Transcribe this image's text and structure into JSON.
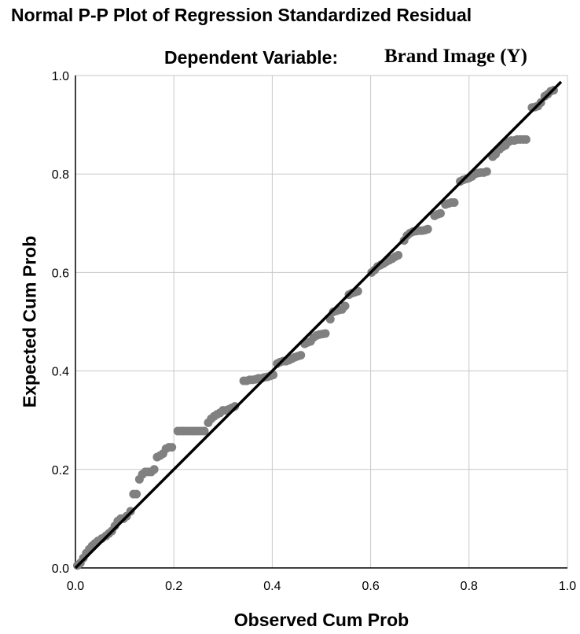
{
  "chart_data": {
    "type": "scatter",
    "title": "Normal P-P Plot of Regression Standardized Residual",
    "subtitle_label": "Dependent Variable:",
    "subtitle_value": "Brand Image (Y)",
    "xlabel": "Observed Cum Prob",
    "ylabel": "Expected Cum Prob",
    "xlim": [
      0,
      1
    ],
    "ylim": [
      0,
      1
    ],
    "xticks": [
      "0.0",
      "0.2",
      "0.4",
      "0.6",
      "0.8",
      "1.0"
    ],
    "yticks": [
      "0.0",
      "0.2",
      "0.4",
      "0.6",
      "0.8",
      "1.0"
    ],
    "grid": true,
    "point_color": "#808080",
    "line_color": "#000000",
    "reference_line": [
      [
        0,
        0
      ],
      [
        1,
        1
      ]
    ],
    "points": [
      [
        0.004,
        0.005
      ],
      [
        0.01,
        0.01
      ],
      [
        0.016,
        0.02
      ],
      [
        0.022,
        0.03
      ],
      [
        0.028,
        0.038
      ],
      [
        0.034,
        0.045
      ],
      [
        0.04,
        0.05
      ],
      [
        0.046,
        0.055
      ],
      [
        0.054,
        0.06
      ],
      [
        0.062,
        0.065
      ],
      [
        0.068,
        0.07
      ],
      [
        0.074,
        0.075
      ],
      [
        0.08,
        0.085
      ],
      [
        0.086,
        0.095
      ],
      [
        0.092,
        0.1
      ],
      [
        0.098,
        0.1
      ],
      [
        0.104,
        0.105
      ],
      [
        0.112,
        0.115
      ],
      [
        0.118,
        0.15
      ],
      [
        0.124,
        0.15
      ],
      [
        0.13,
        0.18
      ],
      [
        0.136,
        0.19
      ],
      [
        0.142,
        0.195
      ],
      [
        0.148,
        0.195
      ],
      [
        0.154,
        0.195
      ],
      [
        0.16,
        0.2
      ],
      [
        0.166,
        0.225
      ],
      [
        0.172,
        0.228
      ],
      [
        0.178,
        0.232
      ],
      [
        0.184,
        0.242
      ],
      [
        0.19,
        0.245
      ],
      [
        0.196,
        0.245
      ],
      [
        0.208,
        0.278
      ],
      [
        0.214,
        0.278
      ],
      [
        0.22,
        0.278
      ],
      [
        0.226,
        0.278
      ],
      [
        0.232,
        0.278
      ],
      [
        0.238,
        0.278
      ],
      [
        0.244,
        0.278
      ],
      [
        0.25,
        0.278
      ],
      [
        0.256,
        0.278
      ],
      [
        0.262,
        0.278
      ],
      [
        0.27,
        0.295
      ],
      [
        0.276,
        0.303
      ],
      [
        0.282,
        0.308
      ],
      [
        0.288,
        0.312
      ],
      [
        0.294,
        0.315
      ],
      [
        0.3,
        0.32
      ],
      [
        0.306,
        0.32
      ],
      [
        0.312,
        0.322
      ],
      [
        0.318,
        0.325
      ],
      [
        0.324,
        0.328
      ],
      [
        0.342,
        0.38
      ],
      [
        0.348,
        0.38
      ],
      [
        0.354,
        0.382
      ],
      [
        0.36,
        0.382
      ],
      [
        0.366,
        0.383
      ],
      [
        0.372,
        0.385
      ],
      [
        0.378,
        0.385
      ],
      [
        0.384,
        0.387
      ],
      [
        0.39,
        0.388
      ],
      [
        0.396,
        0.39
      ],
      [
        0.402,
        0.392
      ],
      [
        0.41,
        0.415
      ],
      [
        0.416,
        0.418
      ],
      [
        0.422,
        0.42
      ],
      [
        0.428,
        0.42
      ],
      [
        0.434,
        0.422
      ],
      [
        0.44,
        0.425
      ],
      [
        0.446,
        0.428
      ],
      [
        0.452,
        0.43
      ],
      [
        0.458,
        0.432
      ],
      [
        0.466,
        0.455
      ],
      [
        0.472,
        0.458
      ],
      [
        0.478,
        0.46
      ],
      [
        0.484,
        0.468
      ],
      [
        0.49,
        0.472
      ],
      [
        0.496,
        0.474
      ],
      [
        0.502,
        0.475
      ],
      [
        0.508,
        0.476
      ],
      [
        0.518,
        0.505
      ],
      [
        0.524,
        0.52
      ],
      [
        0.53,
        0.522
      ],
      [
        0.536,
        0.524
      ],
      [
        0.542,
        0.525
      ],
      [
        0.548,
        0.532
      ],
      [
        0.556,
        0.555
      ],
      [
        0.562,
        0.558
      ],
      [
        0.568,
        0.56
      ],
      [
        0.574,
        0.562
      ],
      [
        0.602,
        0.6
      ],
      [
        0.608,
        0.605
      ],
      [
        0.614,
        0.612
      ],
      [
        0.62,
        0.615
      ],
      [
        0.626,
        0.618
      ],
      [
        0.632,
        0.622
      ],
      [
        0.638,
        0.625
      ],
      [
        0.644,
        0.628
      ],
      [
        0.65,
        0.632
      ],
      [
        0.656,
        0.635
      ],
      [
        0.668,
        0.665
      ],
      [
        0.674,
        0.675
      ],
      [
        0.68,
        0.68
      ],
      [
        0.686,
        0.683
      ],
      [
        0.692,
        0.684
      ],
      [
        0.698,
        0.685
      ],
      [
        0.704,
        0.685
      ],
      [
        0.71,
        0.686
      ],
      [
        0.716,
        0.688
      ],
      [
        0.73,
        0.715
      ],
      [
        0.736,
        0.718
      ],
      [
        0.742,
        0.72
      ],
      [
        0.752,
        0.738
      ],
      [
        0.758,
        0.74
      ],
      [
        0.764,
        0.742
      ],
      [
        0.77,
        0.742
      ],
      [
        0.782,
        0.785
      ],
      [
        0.788,
        0.788
      ],
      [
        0.794,
        0.79
      ],
      [
        0.8,
        0.792
      ],
      [
        0.806,
        0.795
      ],
      [
        0.812,
        0.8
      ],
      [
        0.818,
        0.802
      ],
      [
        0.824,
        0.803
      ],
      [
        0.83,
        0.803
      ],
      [
        0.836,
        0.805
      ],
      [
        0.848,
        0.835
      ],
      [
        0.854,
        0.84
      ],
      [
        0.862,
        0.85
      ],
      [
        0.868,
        0.855
      ],
      [
        0.874,
        0.858
      ],
      [
        0.88,
        0.865
      ],
      [
        0.886,
        0.868
      ],
      [
        0.892,
        0.868
      ],
      [
        0.898,
        0.87
      ],
      [
        0.904,
        0.87
      ],
      [
        0.91,
        0.87
      ],
      [
        0.916,
        0.87
      ],
      [
        0.928,
        0.935
      ],
      [
        0.934,
        0.936
      ],
      [
        0.94,
        0.938
      ],
      [
        0.946,
        0.945
      ],
      [
        0.954,
        0.958
      ],
      [
        0.96,
        0.962
      ],
      [
        0.966,
        0.968
      ],
      [
        0.972,
        0.97
      ]
    ]
  }
}
